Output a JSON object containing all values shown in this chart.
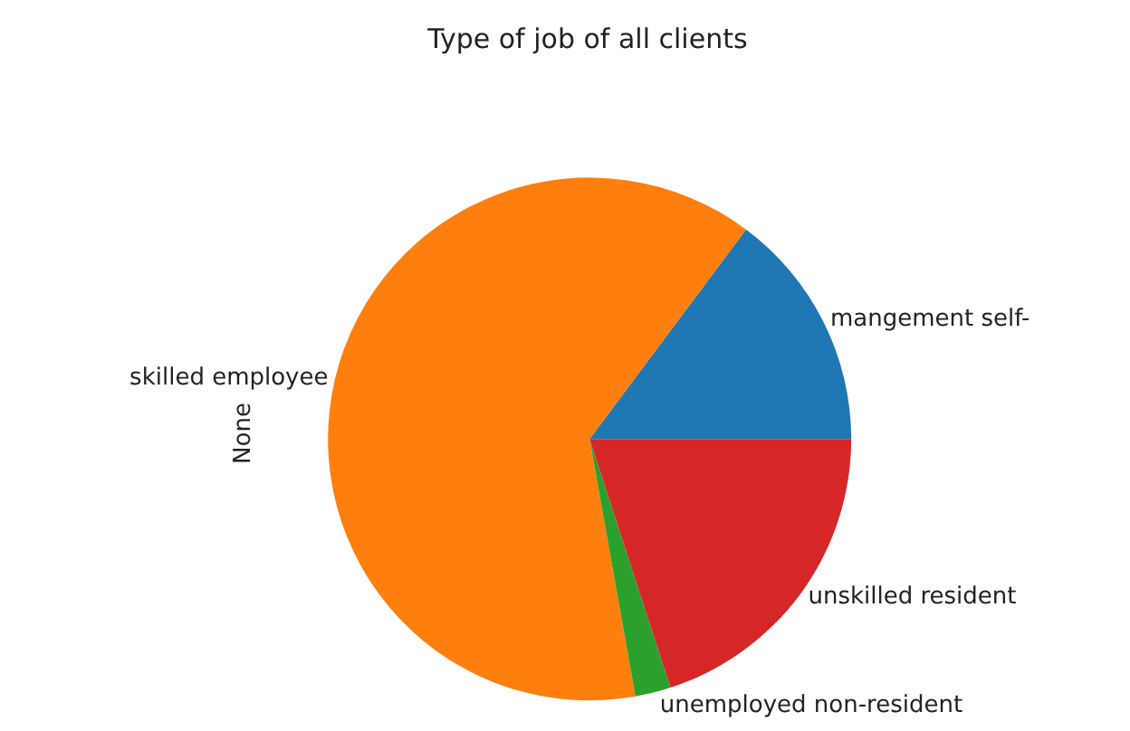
{
  "chart_data": {
    "type": "pie",
    "title": "Type of job of all clients",
    "ylabel": "None",
    "categories": [
      "mangement self-",
      "skilled employee",
      "unemployed non-resident",
      "unskilled resident"
    ],
    "values": [
      14.8,
      63,
      2.2,
      20
    ],
    "colors": [
      "#1f77b4",
      "#ff7f0e",
      "#2ca02c",
      "#d62728"
    ]
  }
}
